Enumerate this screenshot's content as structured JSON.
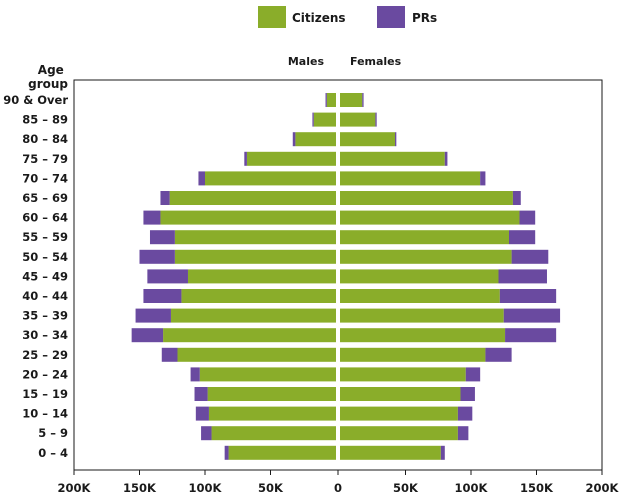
{
  "chart_data": {
    "type": "bar",
    "orientation": "horizontal-population-pyramid",
    "legend": {
      "position": "top-center",
      "items": [
        {
          "name": "Citizens",
          "color": "#8aad2a"
        },
        {
          "name": "PRs",
          "color": "#6a4aa0"
        }
      ]
    },
    "side_labels": {
      "left": "Males",
      "right": "Females"
    },
    "category_axis_title": "Age group",
    "categories": [
      "90 & Over",
      "85 – 89",
      "80 – 84",
      "75 – 79",
      "70 – 74",
      "65 – 69",
      "60 – 64",
      "55 – 59",
      "50 – 54",
      "45 – 49",
      "40 – 44",
      "35 – 39",
      "30 – 34",
      "25 – 29",
      "20 – 24",
      "15 – 19",
      "10 – 14",
      "5 – 9",
      "0 – 4"
    ],
    "series": [
      {
        "name": "Citizens",
        "group": "Males",
        "values": [
          7000,
          17000,
          31000,
          68000,
          100000,
          127000,
          134000,
          123000,
          123000,
          113000,
          118000,
          126000,
          132000,
          121000,
          104000,
          98000,
          97000,
          95000,
          82000
        ]
      },
      {
        "name": "PRs",
        "group": "Males",
        "values": [
          1000,
          1000,
          2000,
          2000,
          5000,
          7000,
          13000,
          19000,
          27000,
          31000,
          29000,
          27000,
          24000,
          12000,
          7000,
          10000,
          10000,
          8000,
          3000
        ]
      },
      {
        "name": "Citizens",
        "group": "Females",
        "values": [
          17000,
          27000,
          42000,
          80000,
          107000,
          132000,
          137000,
          129000,
          131000,
          121000,
          122000,
          125000,
          126000,
          111000,
          96000,
          92000,
          90000,
          90000,
          77000
        ]
      },
      {
        "name": "PRs",
        "group": "Females",
        "values": [
          1000,
          1000,
          1000,
          2000,
          4000,
          6000,
          12000,
          20000,
          28000,
          37000,
          43000,
          43000,
          39000,
          20000,
          11000,
          11000,
          11000,
          8000,
          3000
        ]
      }
    ],
    "x_ticks": [
      "200K",
      "150K",
      "100K",
      "50K",
      "0",
      "50K",
      "100K",
      "150K",
      "200K"
    ],
    "xlim": [
      -200000,
      200000
    ],
    "grid": false
  }
}
